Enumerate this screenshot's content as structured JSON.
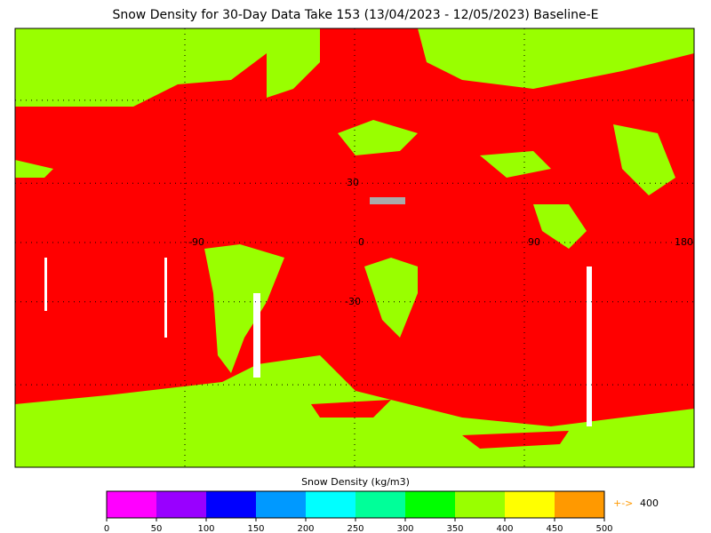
{
  "title": "Snow Density for 30-Day Data Take 153 (13/04/2023 - 12/05/2023) Baseline-E",
  "map": {
    "lon_labels": [
      -90,
      0,
      90,
      180
    ],
    "lat_labels": [
      30,
      -30
    ],
    "lon_grid": [
      -90,
      0,
      90
    ],
    "lat_grid": [
      60,
      30,
      0,
      -30,
      -60
    ],
    "background_color": "#ff0000",
    "land_color": "#99ff00",
    "nodata_color": "#ffffff"
  },
  "colorbar": {
    "label": "Snow Density (kg/m3)",
    "ticks": [
      0,
      50,
      100,
      150,
      200,
      250,
      300,
      350,
      400,
      450,
      500
    ],
    "colors": [
      "#ff00ff",
      "#9900ff",
      "#0000ff",
      "#0099ff",
      "#00ffff",
      "#00ff99",
      "#00ff00",
      "#99ff00",
      "#ffff00",
      "#ff9900"
    ],
    "overflow_marker": "+->",
    "overflow_value": 400
  }
}
